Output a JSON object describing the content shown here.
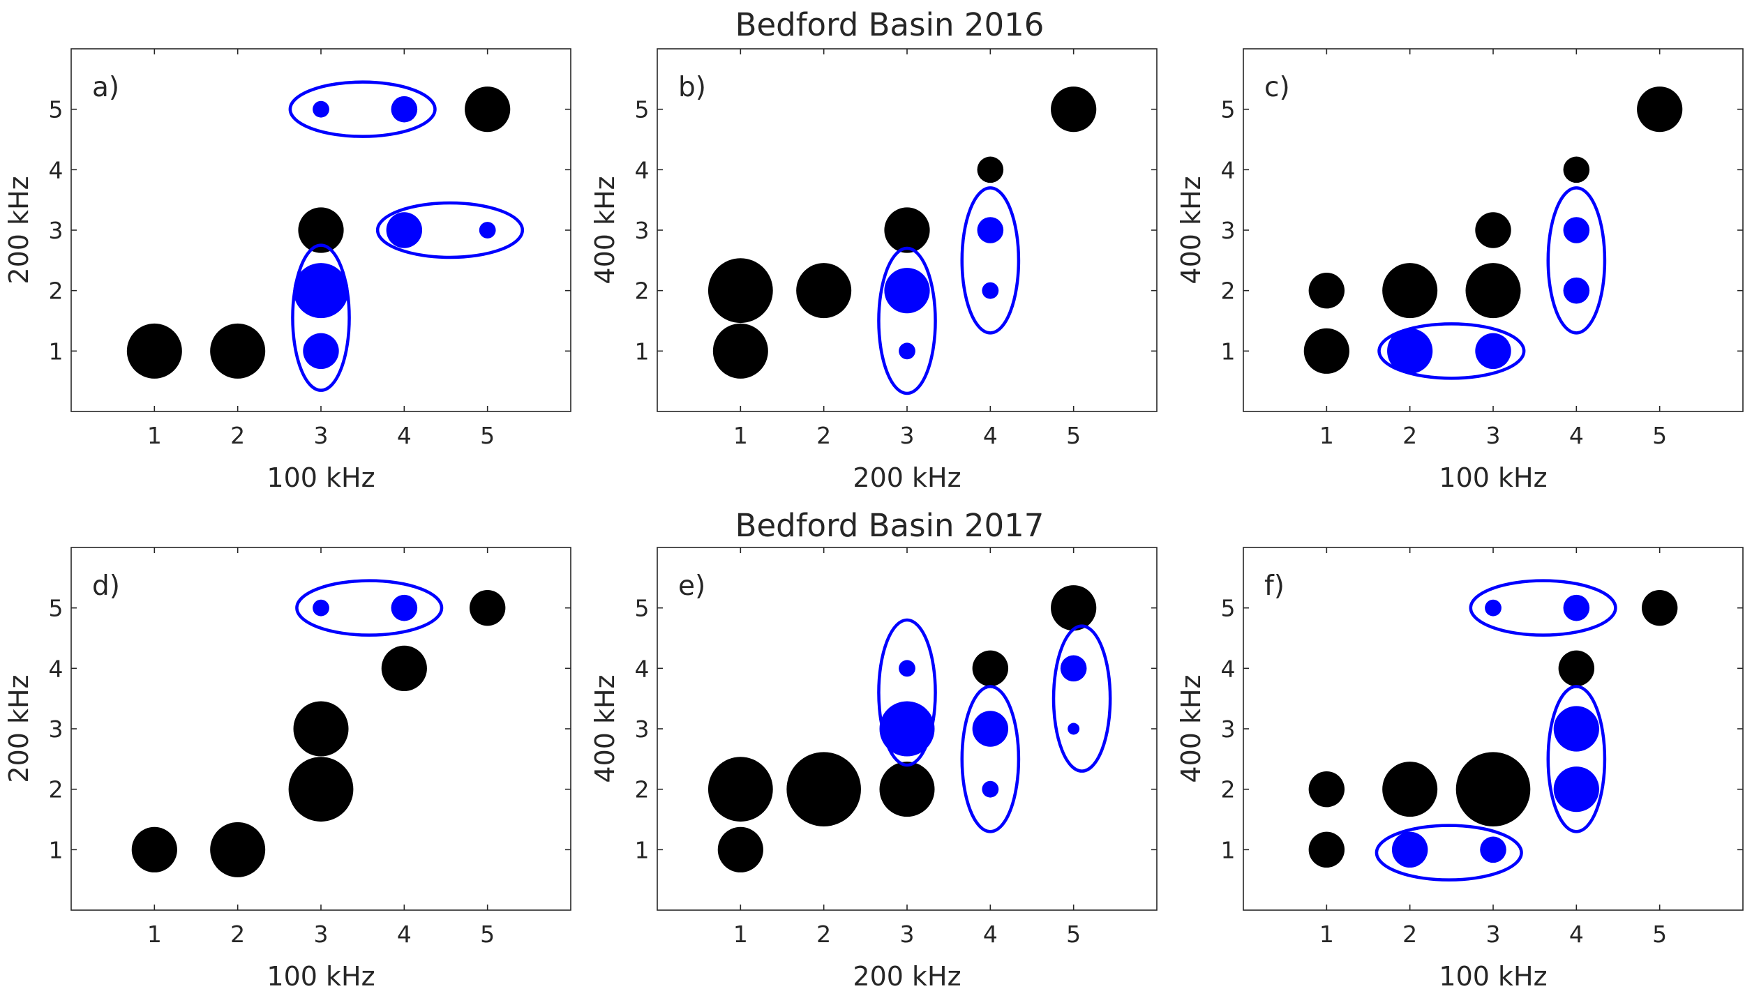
{
  "figure": {
    "titles": [
      "Bedford Basin 2016",
      "Bedford Basin 2017"
    ]
  },
  "chart_data": [
    {
      "type": "scatter",
      "panel_label": "a)",
      "xlabel": "100 kHz",
      "ylabel": "200 kHz",
      "xlim": [
        0,
        6
      ],
      "ylim": [
        0,
        6
      ],
      "xticks": [
        1,
        2,
        3,
        4,
        5
      ],
      "yticks": [
        1,
        2,
        3,
        4,
        5
      ],
      "points": [
        {
          "x": 1,
          "y": 1,
          "size": 5,
          "color": "black"
        },
        {
          "x": 2,
          "y": 1,
          "size": 5,
          "color": "black"
        },
        {
          "x": 3,
          "y": 1,
          "size": 3,
          "color": "blue"
        },
        {
          "x": 3,
          "y": 2,
          "size": 5,
          "color": "blue"
        },
        {
          "x": 3,
          "y": 3,
          "size": 4,
          "color": "black"
        },
        {
          "x": 3,
          "y": 5,
          "size": 1,
          "color": "blue"
        },
        {
          "x": 4,
          "y": 5,
          "size": 2,
          "color": "blue"
        },
        {
          "x": 4,
          "y": 3,
          "size": 3,
          "color": "blue"
        },
        {
          "x": 5,
          "y": 3,
          "size": 1,
          "color": "blue"
        },
        {
          "x": 5,
          "y": 5,
          "size": 4,
          "color": "black"
        }
      ],
      "groups": [
        {
          "cx": 3,
          "cy": 1.55,
          "rx": 0.34,
          "ry": 1.2
        },
        {
          "cx": 3.5,
          "cy": 5,
          "rx": 0.87,
          "ry": 0.45
        },
        {
          "cx": 4.55,
          "cy": 3,
          "rx": 0.87,
          "ry": 0.45
        }
      ]
    },
    {
      "type": "scatter",
      "panel_label": "b)",
      "xlabel": "200 kHz",
      "ylabel": "400 kHz",
      "xlim": [
        0,
        6
      ],
      "ylim": [
        0,
        6
      ],
      "xticks": [
        1,
        2,
        3,
        4,
        5
      ],
      "yticks": [
        1,
        2,
        3,
        4,
        5
      ],
      "points": [
        {
          "x": 1,
          "y": 1,
          "size": 5,
          "color": "black"
        },
        {
          "x": 1,
          "y": 2,
          "size": 6,
          "color": "black"
        },
        {
          "x": 2,
          "y": 2,
          "size": 5,
          "color": "black"
        },
        {
          "x": 3,
          "y": 1,
          "size": 1,
          "color": "blue"
        },
        {
          "x": 3,
          "y": 2,
          "size": 4,
          "color": "blue"
        },
        {
          "x": 3,
          "y": 3,
          "size": 4,
          "color": "black"
        },
        {
          "x": 4,
          "y": 2,
          "size": 1,
          "color": "blue"
        },
        {
          "x": 4,
          "y": 3,
          "size": 2,
          "color": "blue"
        },
        {
          "x": 4,
          "y": 4,
          "size": 2,
          "color": "black"
        },
        {
          "x": 5,
          "y": 5,
          "size": 4,
          "color": "black"
        }
      ],
      "groups": [
        {
          "cx": 3,
          "cy": 1.5,
          "rx": 0.34,
          "ry": 1.2
        },
        {
          "cx": 4,
          "cy": 2.5,
          "rx": 0.34,
          "ry": 1.2
        }
      ]
    },
    {
      "type": "scatter",
      "panel_label": "c)",
      "xlabel": "100 kHz",
      "ylabel": "400 kHz",
      "xlim": [
        0,
        6
      ],
      "ylim": [
        0,
        6
      ],
      "xticks": [
        1,
        2,
        3,
        4,
        5
      ],
      "yticks": [
        1,
        2,
        3,
        4,
        5
      ],
      "points": [
        {
          "x": 1,
          "y": 1,
          "size": 4,
          "color": "black"
        },
        {
          "x": 1,
          "y": 2,
          "size": 3,
          "color": "black"
        },
        {
          "x": 2,
          "y": 2,
          "size": 5,
          "color": "black"
        },
        {
          "x": 2,
          "y": 1,
          "size": 4,
          "color": "blue"
        },
        {
          "x": 3,
          "y": 1,
          "size": 3,
          "color": "blue"
        },
        {
          "x": 3,
          "y": 2,
          "size": 5,
          "color": "black"
        },
        {
          "x": 3,
          "y": 3,
          "size": 3,
          "color": "black"
        },
        {
          "x": 4,
          "y": 2,
          "size": 2,
          "color": "blue"
        },
        {
          "x": 4,
          "y": 3,
          "size": 2,
          "color": "blue"
        },
        {
          "x": 4,
          "y": 4,
          "size": 2,
          "color": "black"
        },
        {
          "x": 5,
          "y": 5,
          "size": 4,
          "color": "black"
        }
      ],
      "groups": [
        {
          "cx": 2.5,
          "cy": 1,
          "rx": 0.87,
          "ry": 0.45
        },
        {
          "cx": 4,
          "cy": 2.5,
          "rx": 0.34,
          "ry": 1.2
        }
      ]
    },
    {
      "type": "scatter",
      "panel_label": "d)",
      "xlabel": "100 kHz",
      "ylabel": "200 kHz",
      "xlim": [
        0,
        6
      ],
      "ylim": [
        0,
        6
      ],
      "xticks": [
        1,
        2,
        3,
        4,
        5
      ],
      "yticks": [
        1,
        2,
        3,
        4,
        5
      ],
      "points": [
        {
          "x": 1,
          "y": 1,
          "size": 4,
          "color": "black"
        },
        {
          "x": 2,
          "y": 1,
          "size": 5,
          "color": "black"
        },
        {
          "x": 3,
          "y": 2,
          "size": 6,
          "color": "black"
        },
        {
          "x": 3,
          "y": 3,
          "size": 5,
          "color": "black"
        },
        {
          "x": 4,
          "y": 4,
          "size": 4,
          "color": "black"
        },
        {
          "x": 3,
          "y": 5,
          "size": 1,
          "color": "blue"
        },
        {
          "x": 4,
          "y": 5,
          "size": 2,
          "color": "blue"
        },
        {
          "x": 5,
          "y": 5,
          "size": 3,
          "color": "black"
        }
      ],
      "groups": [
        {
          "cx": 3.58,
          "cy": 5,
          "rx": 0.87,
          "ry": 0.45
        }
      ]
    },
    {
      "type": "scatter",
      "panel_label": "e)",
      "xlabel": "200 kHz",
      "ylabel": "400 kHz",
      "xlim": [
        0,
        6
      ],
      "ylim": [
        0,
        6
      ],
      "xticks": [
        1,
        2,
        3,
        4,
        5
      ],
      "yticks": [
        1,
        2,
        3,
        4,
        5
      ],
      "points": [
        {
          "x": 1,
          "y": 1,
          "size": 4,
          "color": "black"
        },
        {
          "x": 1,
          "y": 2,
          "size": 6,
          "color": "black"
        },
        {
          "x": 2,
          "y": 2,
          "size": 7,
          "color": "black"
        },
        {
          "x": 3,
          "y": 2,
          "size": 5,
          "color": "black"
        },
        {
          "x": 3,
          "y": 3,
          "size": 5,
          "color": "blue"
        },
        {
          "x": 3,
          "y": 4,
          "size": 1,
          "color": "blue"
        },
        {
          "x": 4,
          "y": 2,
          "size": 1,
          "color": "blue"
        },
        {
          "x": 4,
          "y": 3,
          "size": 3,
          "color": "blue"
        },
        {
          "x": 4,
          "y": 4,
          "size": 3,
          "color": "black"
        },
        {
          "x": 5,
          "y": 3,
          "size": 0.5,
          "color": "blue"
        },
        {
          "x": 5,
          "y": 4,
          "size": 2,
          "color": "blue"
        },
        {
          "x": 5,
          "y": 5,
          "size": 4,
          "color": "black"
        }
      ],
      "groups": [
        {
          "cx": 3,
          "cy": 3.6,
          "rx": 0.34,
          "ry": 1.2
        },
        {
          "cx": 4,
          "cy": 2.5,
          "rx": 0.34,
          "ry": 1.2
        },
        {
          "cx": 5.1,
          "cy": 3.5,
          "rx": 0.34,
          "ry": 1.2
        }
      ]
    },
    {
      "type": "scatter",
      "panel_label": "f)",
      "xlabel": "100 kHz",
      "ylabel": "400 kHz",
      "xlim": [
        0,
        6
      ],
      "ylim": [
        0,
        6
      ],
      "xticks": [
        1,
        2,
        3,
        4,
        5
      ],
      "yticks": [
        1,
        2,
        3,
        4,
        5
      ],
      "points": [
        {
          "x": 1,
          "y": 1,
          "size": 3,
          "color": "black"
        },
        {
          "x": 1,
          "y": 2,
          "size": 3,
          "color": "black"
        },
        {
          "x": 2,
          "y": 2,
          "size": 5,
          "color": "black"
        },
        {
          "x": 2,
          "y": 1,
          "size": 3,
          "color": "blue"
        },
        {
          "x": 3,
          "y": 1,
          "size": 2,
          "color": "blue"
        },
        {
          "x": 3,
          "y": 2,
          "size": 7,
          "color": "black"
        },
        {
          "x": 3,
          "y": 5,
          "size": 1,
          "color": "blue"
        },
        {
          "x": 4,
          "y": 5,
          "size": 2,
          "color": "blue"
        },
        {
          "x": 4,
          "y": 2,
          "size": 4,
          "color": "blue"
        },
        {
          "x": 4,
          "y": 3,
          "size": 4,
          "color": "blue"
        },
        {
          "x": 4,
          "y": 4,
          "size": 3,
          "color": "black"
        },
        {
          "x": 5,
          "y": 5,
          "size": 3,
          "color": "black"
        }
      ],
      "groups": [
        {
          "cx": 2.47,
          "cy": 0.95,
          "rx": 0.87,
          "ry": 0.45
        },
        {
          "cx": 3.6,
          "cy": 5,
          "rx": 0.87,
          "ry": 0.45
        },
        {
          "cx": 4,
          "cy": 2.5,
          "rx": 0.34,
          "ry": 1.2
        }
      ]
    }
  ],
  "colors": {
    "black_marker": "#000000",
    "blue_marker": "#0000ff",
    "axis": "#262626",
    "background": "#ffffff"
  }
}
